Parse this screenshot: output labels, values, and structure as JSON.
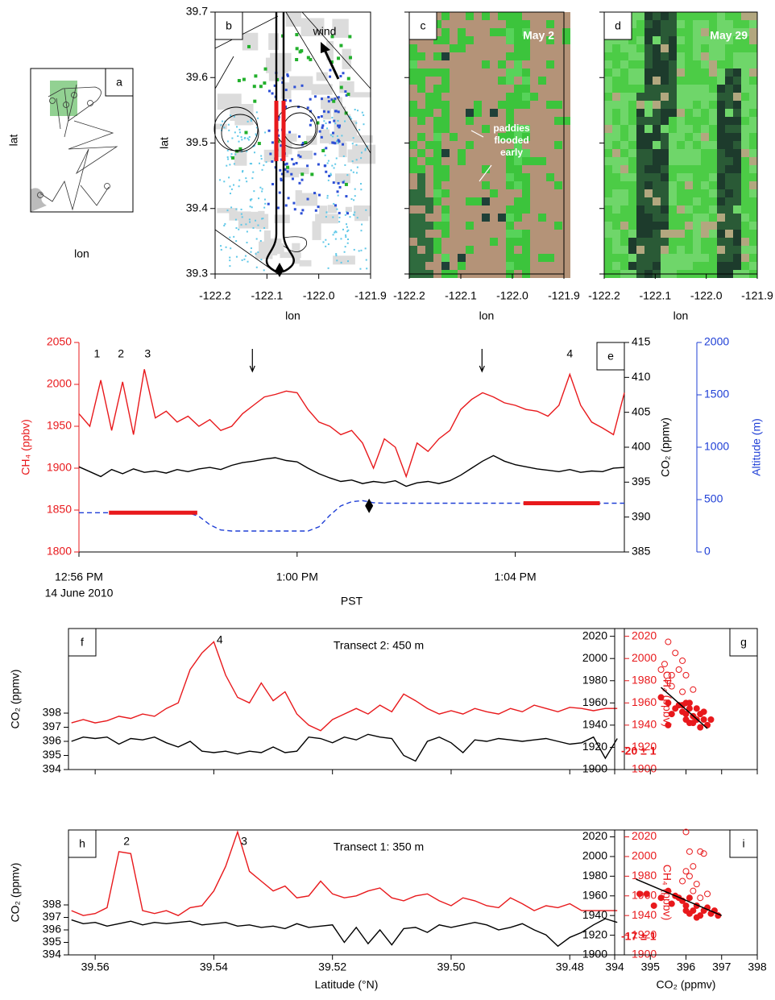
{
  "chart_data": [
    {
      "type": "map",
      "label": "a",
      "label_corner": "top-right",
      "xlabel": "lon",
      "ylabel": "lat"
    },
    {
      "type": "map",
      "label": "b",
      "label_corner": "top-left",
      "annotation": "wind",
      "xlabel": "lon",
      "ylabel": "lat",
      "xlim": [
        -122.2,
        -121.9
      ],
      "xticks": [
        -122.2,
        -122.1,
        {
          "value": -122.0,
          "label": "-122.0"
        },
        -121.9
      ],
      "ylim": [
        39.3,
        39.7
      ],
      "yticks": [
        39.3,
        39.4,
        39.5,
        39.6,
        39.7
      ]
    },
    {
      "type": "image",
      "label": "c",
      "label_corner": "top-left",
      "annotation": "May 2",
      "note": "paddies flooded early",
      "xlabel": "lon",
      "xlim": [
        -122.2,
        -121.9
      ],
      "xticks": [
        -122.2,
        -122.1,
        {
          "value": -122.0,
          "label": "-122.0"
        },
        -121.9
      ],
      "ylim": [
        39.3,
        39.7
      ],
      "yticks": [
        39.3,
        39.4,
        39.5,
        39.6,
        39.7
      ],
      "ytick_labels": false
    },
    {
      "type": "image",
      "label": "d",
      "label_corner": "top-left",
      "annotation": "May 29",
      "xlabel": "lon",
      "xlim": [
        -122.2,
        -121.9
      ],
      "xticks": [
        -122.2,
        -122.1,
        {
          "value": -122.0,
          "label": "-122.0"
        },
        -121.9
      ],
      "ylim": [
        39.3,
        39.7
      ],
      "yticks": [
        39.3,
        39.4,
        39.5,
        39.6,
        39.7
      ],
      "ytick_labels": false
    },
    {
      "type": "line",
      "label": "e",
      "label_corner": "top-right",
      "xlabel": "PST",
      "date": "14 June 2010",
      "ylabel": "CH₄ (ppbv)",
      "y2label": "CO₂ (ppmv)",
      "y3label": "Altitude (m)",
      "xlim": [
        776,
        786
      ],
      "xticks": [
        {
          "value": 776,
          "label": "12:56 PM"
        },
        {
          "value": 780,
          "label": "1:00 PM"
        },
        {
          "value": 784,
          "label": "1:04 PM"
        }
      ],
      "ylim": [
        1800,
        2050
      ],
      "yticks": [
        1800,
        1850,
        1900,
        1950,
        2000,
        2050
      ],
      "y2lim": [
        385,
        415
      ],
      "y2ticks": [
        385,
        390,
        395,
        400,
        405,
        410,
        415
      ],
      "y3lim": [
        0,
        2000
      ],
      "y3ticks": [
        0,
        500,
        1000,
        1500,
        2000
      ],
      "x": [
        776,
        776.2,
        776.4,
        776.6,
        776.8,
        777,
        777.2,
        777.4,
        777.6,
        777.8,
        778,
        778.2,
        778.4,
        778.6,
        778.8,
        779,
        779.2,
        779.4,
        779.6,
        779.8,
        780,
        780.2,
        780.4,
        780.6,
        780.8,
        781,
        781.2,
        781.4,
        781.6,
        781.8,
        782,
        782.2,
        782.4,
        782.6,
        782.8,
        783,
        783.2,
        783.4,
        783.6,
        783.8,
        784,
        784.2,
        784.4,
        784.6,
        784.8,
        785,
        785.2,
        785.4,
        785.6,
        785.8,
        786
      ],
      "series": [
        {
          "color": "#e8191c",
          "axis": "y",
          "values": [
            1965,
            1950,
            2005,
            1945,
            2003,
            1940,
            2018,
            1960,
            1968,
            1955,
            1962,
            1950,
            1958,
            1945,
            1950,
            1965,
            1975,
            1985,
            1988,
            1992,
            1990,
            1970,
            1955,
            1950,
            1940,
            1945,
            1930,
            1900,
            1935,
            1925,
            1890,
            1930,
            1920,
            1935,
            1945,
            1970,
            1982,
            1990,
            1985,
            1978,
            1975,
            1970,
            1968,
            1962,
            1975,
            2012,
            1975,
            1955,
            1948,
            1940,
            1990
          ]
        },
        {
          "color": "#000000",
          "axis": "y2",
          "values": [
            397.2,
            396.5,
            395.8,
            396.8,
            396.2,
            396.9,
            396.4,
            396.6,
            396.3,
            396.8,
            396.5,
            396.9,
            397.1,
            396.8,
            397.4,
            397.8,
            398.0,
            398.3,
            398.5,
            398.1,
            397.9,
            397.0,
            396.2,
            395.6,
            395.1,
            395.3,
            394.8,
            395.1,
            394.9,
            395.2,
            394.4,
            394.9,
            395.1,
            394.8,
            395.2,
            396.0,
            397.0,
            398.0,
            398.8,
            398.0,
            397.5,
            397.2,
            396.9,
            396.7,
            396.5,
            396.8,
            396.4,
            396.6,
            396.5,
            397.0,
            397.1
          ]
        },
        {
          "color": "#1f3fd6",
          "axis": "y3",
          "dashed": true,
          "values": [
            375,
            375,
            375,
            375,
            375,
            375,
            375,
            375,
            375,
            375,
            375,
            340,
            260,
            210,
            200,
            200,
            200,
            200,
            200,
            200,
            200,
            200,
            240,
            350,
            440,
            480,
            490,
            470,
            465,
            465,
            465,
            465,
            465,
            465,
            465,
            465,
            465,
            465,
            465,
            465,
            465,
            465,
            465,
            465,
            465,
            465,
            465,
            465,
            465,
            465,
            465
          ]
        }
      ],
      "highlights": [
        {
          "x": [
            776.55,
            778.17
          ],
          "value": 375
        },
        {
          "x": [
            784.15,
            785.55
          ],
          "value": 465
        }
      ],
      "highlight_color": "#e8191c",
      "marker": {
        "x": 781.32,
        "value": 440
      },
      "arrows_x": [
        779.18,
        783.39
      ],
      "annotations": [
        {
          "text": "1",
          "x": 776.33
        },
        {
          "text": "2",
          "x": 776.77
        },
        {
          "text": "3",
          "x": 777.26
        },
        {
          "text": "4",
          "x": 785.0
        }
      ]
    },
    {
      "type": "line",
      "label": "f",
      "label_corner": "top-left",
      "title": "Transect 2: 450 m",
      "ylabel": "CO₂ (ppmv)",
      "y2label": "CH₄ (ppbv)",
      "xlim": [
        39.5645,
        39.4708
      ],
      "xticks": [
        39.56,
        39.54,
        39.52,
        {
          "value": 39.5,
          "label": "39.50"
        },
        39.48
      ],
      "xtick_labels": false,
      "ylim": [
        394,
        404
      ],
      "yticks": [
        394,
        395,
        396,
        397,
        398
      ],
      "y2lim": [
        1900,
        2027
      ],
      "y2ticks": [
        1900,
        1920,
        1940,
        1960,
        1980,
        2000,
        2020
      ],
      "x": [
        39.564,
        39.562,
        39.56,
        39.558,
        39.556,
        39.554,
        39.552,
        39.55,
        39.548,
        39.546,
        39.544,
        39.542,
        39.54,
        39.538,
        39.536,
        39.534,
        39.532,
        39.53,
        39.528,
        39.526,
        39.524,
        39.522,
        39.52,
        39.518,
        39.516,
        39.514,
        39.512,
        39.51,
        39.508,
        39.506,
        39.504,
        39.502,
        39.5,
        39.498,
        39.496,
        39.494,
        39.492,
        39.49,
        39.488,
        39.486,
        39.484,
        39.482,
        39.48,
        39.478,
        39.476,
        39.474,
        39.472
      ],
      "series": [
        {
          "color": "#000000",
          "axis": "y",
          "values": [
            396.0,
            396.3,
            396.2,
            396.3,
            395.8,
            396.2,
            396.1,
            396.3,
            395.9,
            395.6,
            396.0,
            395.3,
            395.2,
            395.3,
            395.1,
            395.3,
            395.2,
            395.6,
            395.2,
            395.3,
            396.3,
            396.2,
            395.9,
            396.3,
            396.1,
            396.5,
            396.3,
            396.2,
            395.0,
            394.6,
            396.0,
            396.3,
            395.9,
            395.2,
            396.1,
            396.0,
            396.2,
            396.1,
            396.0,
            396.1,
            396.2,
            396.0,
            395.8,
            395.9,
            396.3,
            394.8,
            396.2
          ]
        },
        {
          "color": "#e8191c",
          "axis": "y2",
          "values": [
            1942,
            1945,
            1942,
            1944,
            1948,
            1946,
            1950,
            1948,
            1955,
            1960,
            1990,
            2005,
            2015,
            1985,
            1965,
            1960,
            1978,
            1962,
            1970,
            1950,
            1940,
            1935,
            1945,
            1950,
            1955,
            1950,
            1958,
            1952,
            1968,
            1962,
            1955,
            1950,
            1953,
            1950,
            1955,
            1952,
            1950,
            1955,
            1952,
            1958,
            1955,
            1952,
            1956,
            1955,
            1953,
            1955,
            1955
          ]
        }
      ],
      "annotations": [
        {
          "text": "4",
          "x": 39.539
        }
      ]
    },
    {
      "type": "scatter",
      "label": "g",
      "label_corner": "top-right",
      "annotation": "-20 ± 1",
      "xlim": [
        394,
        398
      ],
      "xticks": [
        394,
        395,
        396,
        397,
        398
      ],
      "xtick_labels": false,
      "ylim": [
        1900,
        2027
      ],
      "yticks": [
        1900,
        1920,
        1940,
        1960,
        1980,
        2000,
        2020
      ],
      "series": [
        {
          "color": "#e8191c",
          "filled": true,
          "x": [
            395.3,
            395.5,
            395.8,
            395.9,
            396.0,
            396.1,
            396.2,
            396.3,
            396.4,
            396.5,
            396.1,
            395.9,
            396.0,
            396.6,
            396.2,
            395.7,
            396.3,
            396.4,
            396.0,
            396.5,
            396.2,
            396.1,
            396.7,
            395.6,
            395.5
          ],
          "values": [
            1965,
            1960,
            1958,
            1952,
            1950,
            1955,
            1948,
            1945,
            1950,
            1945,
            1942,
            1958,
            1945,
            1940,
            1942,
            1955,
            1955,
            1938,
            1960,
            1952,
            1948,
            1960,
            1945,
            1950,
            1940
          ]
        },
        {
          "color": "#e8191c",
          "filled": false,
          "x": [
            395.4,
            395.5,
            395.6,
            395.7,
            395.5,
            395.8,
            396.0,
            395.9,
            395.3,
            395.9,
            395.6,
            396.2
          ],
          "values": [
            1995,
            2015,
            1985,
            2005,
            1980,
            1990,
            1985,
            1970,
            1990,
            1998,
            1975,
            1972
          ]
        }
      ],
      "fit": {
        "x": [
          395.3,
          396.6
        ],
        "values": [
          1974,
          1937
        ]
      }
    },
    {
      "type": "line",
      "label": "h",
      "label_corner": "top-left",
      "title": "Transect 1: 350 m",
      "xlabel": "Latitude (°N)",
      "ylabel": "CO₂ (ppmv)",
      "y2label": "CH₄ (ppbv)",
      "xlim": [
        39.5645,
        39.4708
      ],
      "xticks": [
        39.56,
        39.54,
        39.52,
        {
          "value": 39.5,
          "label": "39.50"
        },
        39.48
      ],
      "ylim": [
        394,
        404
      ],
      "yticks": [
        394,
        395,
        396,
        397,
        398
      ],
      "y2lim": [
        1900,
        2027
      ],
      "y2ticks": [
        1900,
        1920,
        1940,
        1960,
        1980,
        2000,
        2020
      ],
      "x": [
        39.564,
        39.562,
        39.56,
        39.558,
        39.556,
        39.554,
        39.552,
        39.55,
        39.548,
        39.546,
        39.544,
        39.542,
        39.54,
        39.538,
        39.536,
        39.534,
        39.532,
        39.53,
        39.528,
        39.526,
        39.524,
        39.522,
        39.52,
        39.518,
        39.516,
        39.514,
        39.512,
        39.51,
        39.508,
        39.506,
        39.504,
        39.502,
        39.5,
        39.498,
        39.496,
        39.494,
        39.492,
        39.49,
        39.488,
        39.486,
        39.484,
        39.482,
        39.48,
        39.478,
        39.476,
        39.474,
        39.472
      ],
      "series": [
        {
          "color": "#000000",
          "axis": "y",
          "values": [
            396.8,
            396.5,
            396.6,
            396.3,
            396.5,
            396.7,
            396.4,
            396.6,
            396.5,
            396.6,
            396.7,
            396.4,
            396.5,
            396.6,
            396.3,
            396.4,
            396.2,
            396.3,
            396.1,
            396.5,
            396.2,
            396.3,
            396.4,
            395.0,
            396.2,
            394.9,
            396.0,
            394.8,
            396.1,
            396.2,
            395.8,
            396.4,
            396.2,
            396.4,
            396.6,
            396.4,
            396.0,
            396.2,
            396.5,
            396.0,
            395.6,
            394.7,
            395.4,
            395.8,
            396.4,
            396.9,
            396.6
          ]
        },
        {
          "color": "#e8191c",
          "axis": "y2",
          "values": [
            1945,
            1940,
            1942,
            1948,
            2005,
            2003,
            1945,
            1942,
            1945,
            1940,
            1948,
            1950,
            1965,
            1990,
            2025,
            1985,
            1975,
            1965,
            1970,
            1958,
            1960,
            1975,
            1962,
            1958,
            1960,
            1965,
            1968,
            1958,
            1955,
            1960,
            1962,
            1955,
            1950,
            1958,
            1955,
            1950,
            1948,
            1958,
            1952,
            1945,
            1950,
            1948,
            1952,
            1945,
            1945,
            1945,
            1945
          ]
        }
      ],
      "annotations": [
        {
          "text": "2",
          "x": 39.5547
        },
        {
          "text": "3",
          "x": 39.5349
        }
      ]
    },
    {
      "type": "scatter",
      "label": "i",
      "label_corner": "top-right",
      "annotation": "-17 ± 1",
      "xlabel": "CO₂ (ppmv)",
      "xlim": [
        394,
        398
      ],
      "xticks": [
        394,
        395,
        396,
        397,
        398
      ],
      "ylim": [
        1900,
        2027
      ],
      "yticks": [
        1900,
        1920,
        1940,
        1960,
        1980,
        2000,
        2020
      ],
      "series": [
        {
          "color": "#e8191c",
          "filled": true,
          "x": [
            394.7,
            394.9,
            395.1,
            395.3,
            395.5,
            395.7,
            395.9,
            396.0,
            396.1,
            396.3,
            396.5,
            396.7,
            396.9,
            396.2,
            396.4,
            396.6,
            395.8,
            396.0,
            396.3,
            396.8,
            395.6,
            396.1
          ],
          "values": [
            1962,
            1962,
            1950,
            1958,
            1965,
            1960,
            1955,
            1950,
            1958,
            1950,
            1945,
            1942,
            1940,
            1945,
            1940,
            1948,
            1958,
            1945,
            1938,
            1945,
            1952,
            1942
          ]
        },
        {
          "color": "#e8191c",
          "filled": false,
          "x": [
            396.0,
            396.1,
            396.4,
            396.5,
            396.0,
            396.1,
            395.9,
            396.2,
            396.3,
            396.2,
            396.6,
            396.4
          ],
          "values": [
            2025,
            2005,
            2005,
            2003,
            1985,
            1980,
            1975,
            1990,
            1972,
            1965,
            1962,
            1958
          ]
        }
      ],
      "fit": {
        "x": [
          394.6,
          397.0
        ],
        "values": [
          1977,
          1940
        ]
      }
    }
  ]
}
